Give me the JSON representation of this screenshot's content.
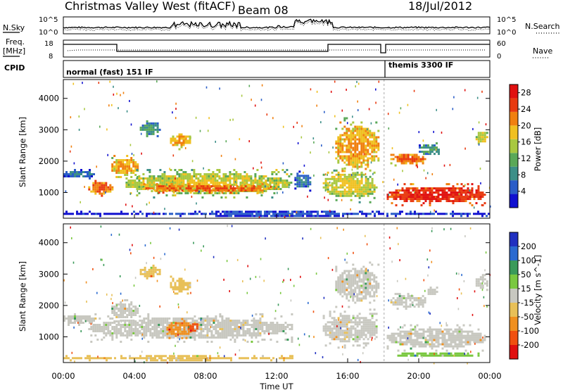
{
  "header": {
    "station": "Christmas Valley West (fitACF)",
    "beam": "Beam 08",
    "date": "18/Jul/2012"
  },
  "left_labels": {
    "nsky": "N.Sky",
    "freq_line1": "Freq.",
    "freq_line2": "[MHz]",
    "cpid": "CPID"
  },
  "right_labels": {
    "nsearch": "N.Search",
    "nave": "Nave"
  },
  "top_panel_ticks": {
    "noise_left": [
      "10^5",
      "10^0"
    ],
    "noise_right": [
      "10^5",
      "10^0"
    ],
    "freq_left": [
      "18",
      "8"
    ],
    "nave_right": [
      "60",
      "0"
    ]
  },
  "cpid_modes": [
    {
      "label": "normal (fast) 151 IF",
      "start_hour": 0
    },
    {
      "label": "themis 3300 IF",
      "start_hour": 18.1
    }
  ],
  "colors": {
    "power_scale": [
      "#1010d0",
      "#2a5dc8",
      "#3d8f88",
      "#5aa858",
      "#a8c840",
      "#f0c020",
      "#f08010",
      "#e83a10",
      "#e01010"
    ],
    "velocity_scale": [
      "#2030c0",
      "#2a6ad0",
      "#3a9a5a",
      "#7ac840",
      "#c8c8c0",
      "#e8c058",
      "#f09020",
      "#f05010",
      "#e01010"
    ]
  },
  "chart_data": [
    {
      "type": "heatmap",
      "panel": "power",
      "ylabel": "Slant Range [km]",
      "yticks": [
        1000,
        2000,
        3000,
        4000
      ],
      "ylim": [
        180,
        4600
      ],
      "xlim": [
        0,
        24
      ],
      "xticks": [
        "00:00",
        "04:00",
        "08:00",
        "12:00",
        "16:00",
        "20:00",
        "00:00"
      ],
      "colorbar": {
        "label": "Power [dB]",
        "ticks": [
          4,
          8,
          12,
          16,
          20,
          24,
          28
        ],
        "range": [
          0,
          30
        ]
      },
      "regions": [
        {
          "t0": 0.0,
          "t1": 1.9,
          "r0": 1350,
          "r1": 1750,
          "level": 2
        },
        {
          "t0": 1.4,
          "t1": 2.9,
          "r0": 800,
          "r1": 1400,
          "level": 7
        },
        {
          "t0": 2.7,
          "t1": 4.3,
          "r0": 1400,
          "r1": 2200,
          "level": 6
        },
        {
          "t0": 3.5,
          "t1": 13.0,
          "r0": 800,
          "r1": 1750,
          "level": 5
        },
        {
          "t0": 4.5,
          "t1": 12.0,
          "r0": 900,
          "r1": 1300,
          "level": 7
        },
        {
          "t0": 6.0,
          "t1": 7.2,
          "r0": 2300,
          "r1": 2950,
          "level": 6
        },
        {
          "t0": 4.3,
          "t1": 5.6,
          "r0": 2700,
          "r1": 3300,
          "level": 3
        },
        {
          "t0": 13.0,
          "t1": 14.0,
          "r0": 1000,
          "r1": 1700,
          "level": 2
        },
        {
          "t0": 14.6,
          "t1": 17.8,
          "r0": 600,
          "r1": 1800,
          "level": 5
        },
        {
          "t0": 15.3,
          "t1": 17.8,
          "r0": 1500,
          "r1": 3400,
          "level": 6
        },
        {
          "t0": 18.2,
          "t1": 23.9,
          "r0": 500,
          "r1": 1300,
          "level": 8
        },
        {
          "t0": 18.4,
          "t1": 20.5,
          "r0": 1800,
          "r1": 2300,
          "level": 7
        },
        {
          "t0": 20.0,
          "t1": 21.2,
          "r0": 2100,
          "r1": 2600,
          "level": 3
        },
        {
          "t0": 23.2,
          "t1": 24.0,
          "r0": 2500,
          "r1": 3000,
          "level": 5
        },
        {
          "t0": 0.0,
          "t1": 24.0,
          "r0": 180,
          "r1": 420,
          "level": 1
        }
      ]
    },
    {
      "type": "heatmap",
      "panel": "velocity",
      "ylabel": "Slant Range [km]",
      "yticks": [
        1000,
        2000,
        3000,
        4000
      ],
      "ylim": [
        180,
        4600
      ],
      "xlim": [
        0,
        24
      ],
      "xticks": [
        "00:00",
        "04:00",
        "08:00",
        "12:00",
        "16:00",
        "20:00",
        "00:00"
      ],
      "xlabel": "Time UT",
      "colorbar": {
        "label": "Velocity [m s^-1]",
        "ticks": [
          200,
          100,
          50,
          15,
          -15,
          -50,
          -100,
          -200
        ],
        "range": [
          -250,
          250
        ]
      },
      "regions": [
        {
          "t0": 0.0,
          "t1": 1.9,
          "r0": 1300,
          "r1": 1750,
          "level": 4
        },
        {
          "t0": 1.4,
          "t1": 13.0,
          "r0": 800,
          "r1": 1750,
          "level": 4
        },
        {
          "t0": 5.8,
          "t1": 7.4,
          "r0": 900,
          "r1": 1600,
          "level": 6
        },
        {
          "t0": 7.0,
          "t1": 7.6,
          "r0": 1050,
          "r1": 1500,
          "level": 7
        },
        {
          "t0": 2.7,
          "t1": 4.3,
          "r0": 1400,
          "r1": 2200,
          "level": 4
        },
        {
          "t0": 6.0,
          "t1": 7.2,
          "r0": 2300,
          "r1": 2950,
          "level": 5
        },
        {
          "t0": 4.3,
          "t1": 5.6,
          "r0": 2800,
          "r1": 3300,
          "level": 5
        },
        {
          "t0": 14.6,
          "t1": 17.8,
          "r0": 600,
          "r1": 1900,
          "level": 4
        },
        {
          "t0": 15.3,
          "t1": 17.8,
          "r0": 1900,
          "r1": 3400,
          "level": 4
        },
        {
          "t0": 18.2,
          "t1": 23.9,
          "r0": 500,
          "r1": 1400,
          "level": 4
        },
        {
          "t0": 18.4,
          "t1": 20.5,
          "r0": 1800,
          "r1": 2400,
          "level": 4
        },
        {
          "t0": 20.5,
          "t1": 21.2,
          "r0": 2200,
          "r1": 2600,
          "level": 4
        },
        {
          "t0": 23.2,
          "t1": 24.0,
          "r0": 2400,
          "r1": 3000,
          "level": 4
        },
        {
          "t0": 0.0,
          "t1": 13.0,
          "r0": 180,
          "r1": 420,
          "level": 5
        },
        {
          "t0": 18.2,
          "t1": 24.0,
          "r0": 300,
          "r1": 500,
          "level": 3
        }
      ]
    }
  ]
}
